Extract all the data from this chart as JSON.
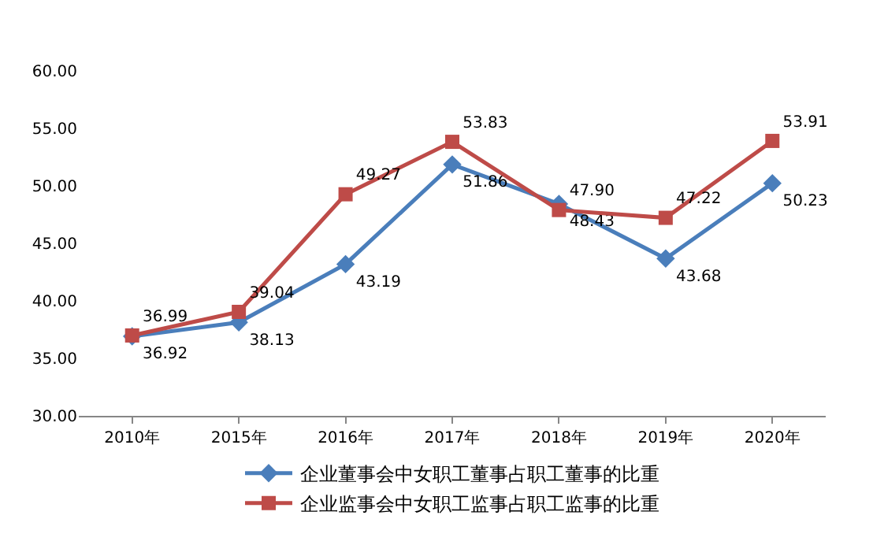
{
  "chart_data": {
    "type": "line",
    "categories": [
      "2010年",
      "2015年",
      "2016年",
      "2017年",
      "2018年",
      "2019年",
      "2020年"
    ],
    "series": [
      {
        "name": "企业董事会中女职工董事占职工董事的比重",
        "color": "#4a7ebb",
        "marker": "diamond",
        "values": [
          36.92,
          38.13,
          43.19,
          51.86,
          48.43,
          43.68,
          50.23
        ],
        "value_labels": [
          "36.92",
          "38.13",
          "43.19",
          "51.86",
          "48.43",
          "43.68",
          "50.23"
        ]
      },
      {
        "name": "企业监事会中女职工监事占职工监事的比重",
        "color": "#be4b48",
        "marker": "square",
        "values": [
          36.99,
          39.04,
          49.27,
          53.83,
          47.9,
          47.22,
          53.91
        ],
        "value_labels": [
          "36.99",
          "39.04",
          "49.27",
          "53.83",
          "47.90",
          "47.22",
          "53.91"
        ]
      }
    ],
    "ylim": [
      30,
      60
    ],
    "yticks": [
      {
        "value": 30,
        "label": "30.00"
      },
      {
        "value": 35,
        "label": "35.00"
      },
      {
        "value": 40,
        "label": "40.00"
      },
      {
        "value": 45,
        "label": "45.00"
      },
      {
        "value": 50,
        "label": "50.00"
      },
      {
        "value": 55,
        "label": "55.00"
      },
      {
        "value": 60,
        "label": "60.00"
      }
    ],
    "legend": "bottom",
    "line_style": "solid"
  }
}
